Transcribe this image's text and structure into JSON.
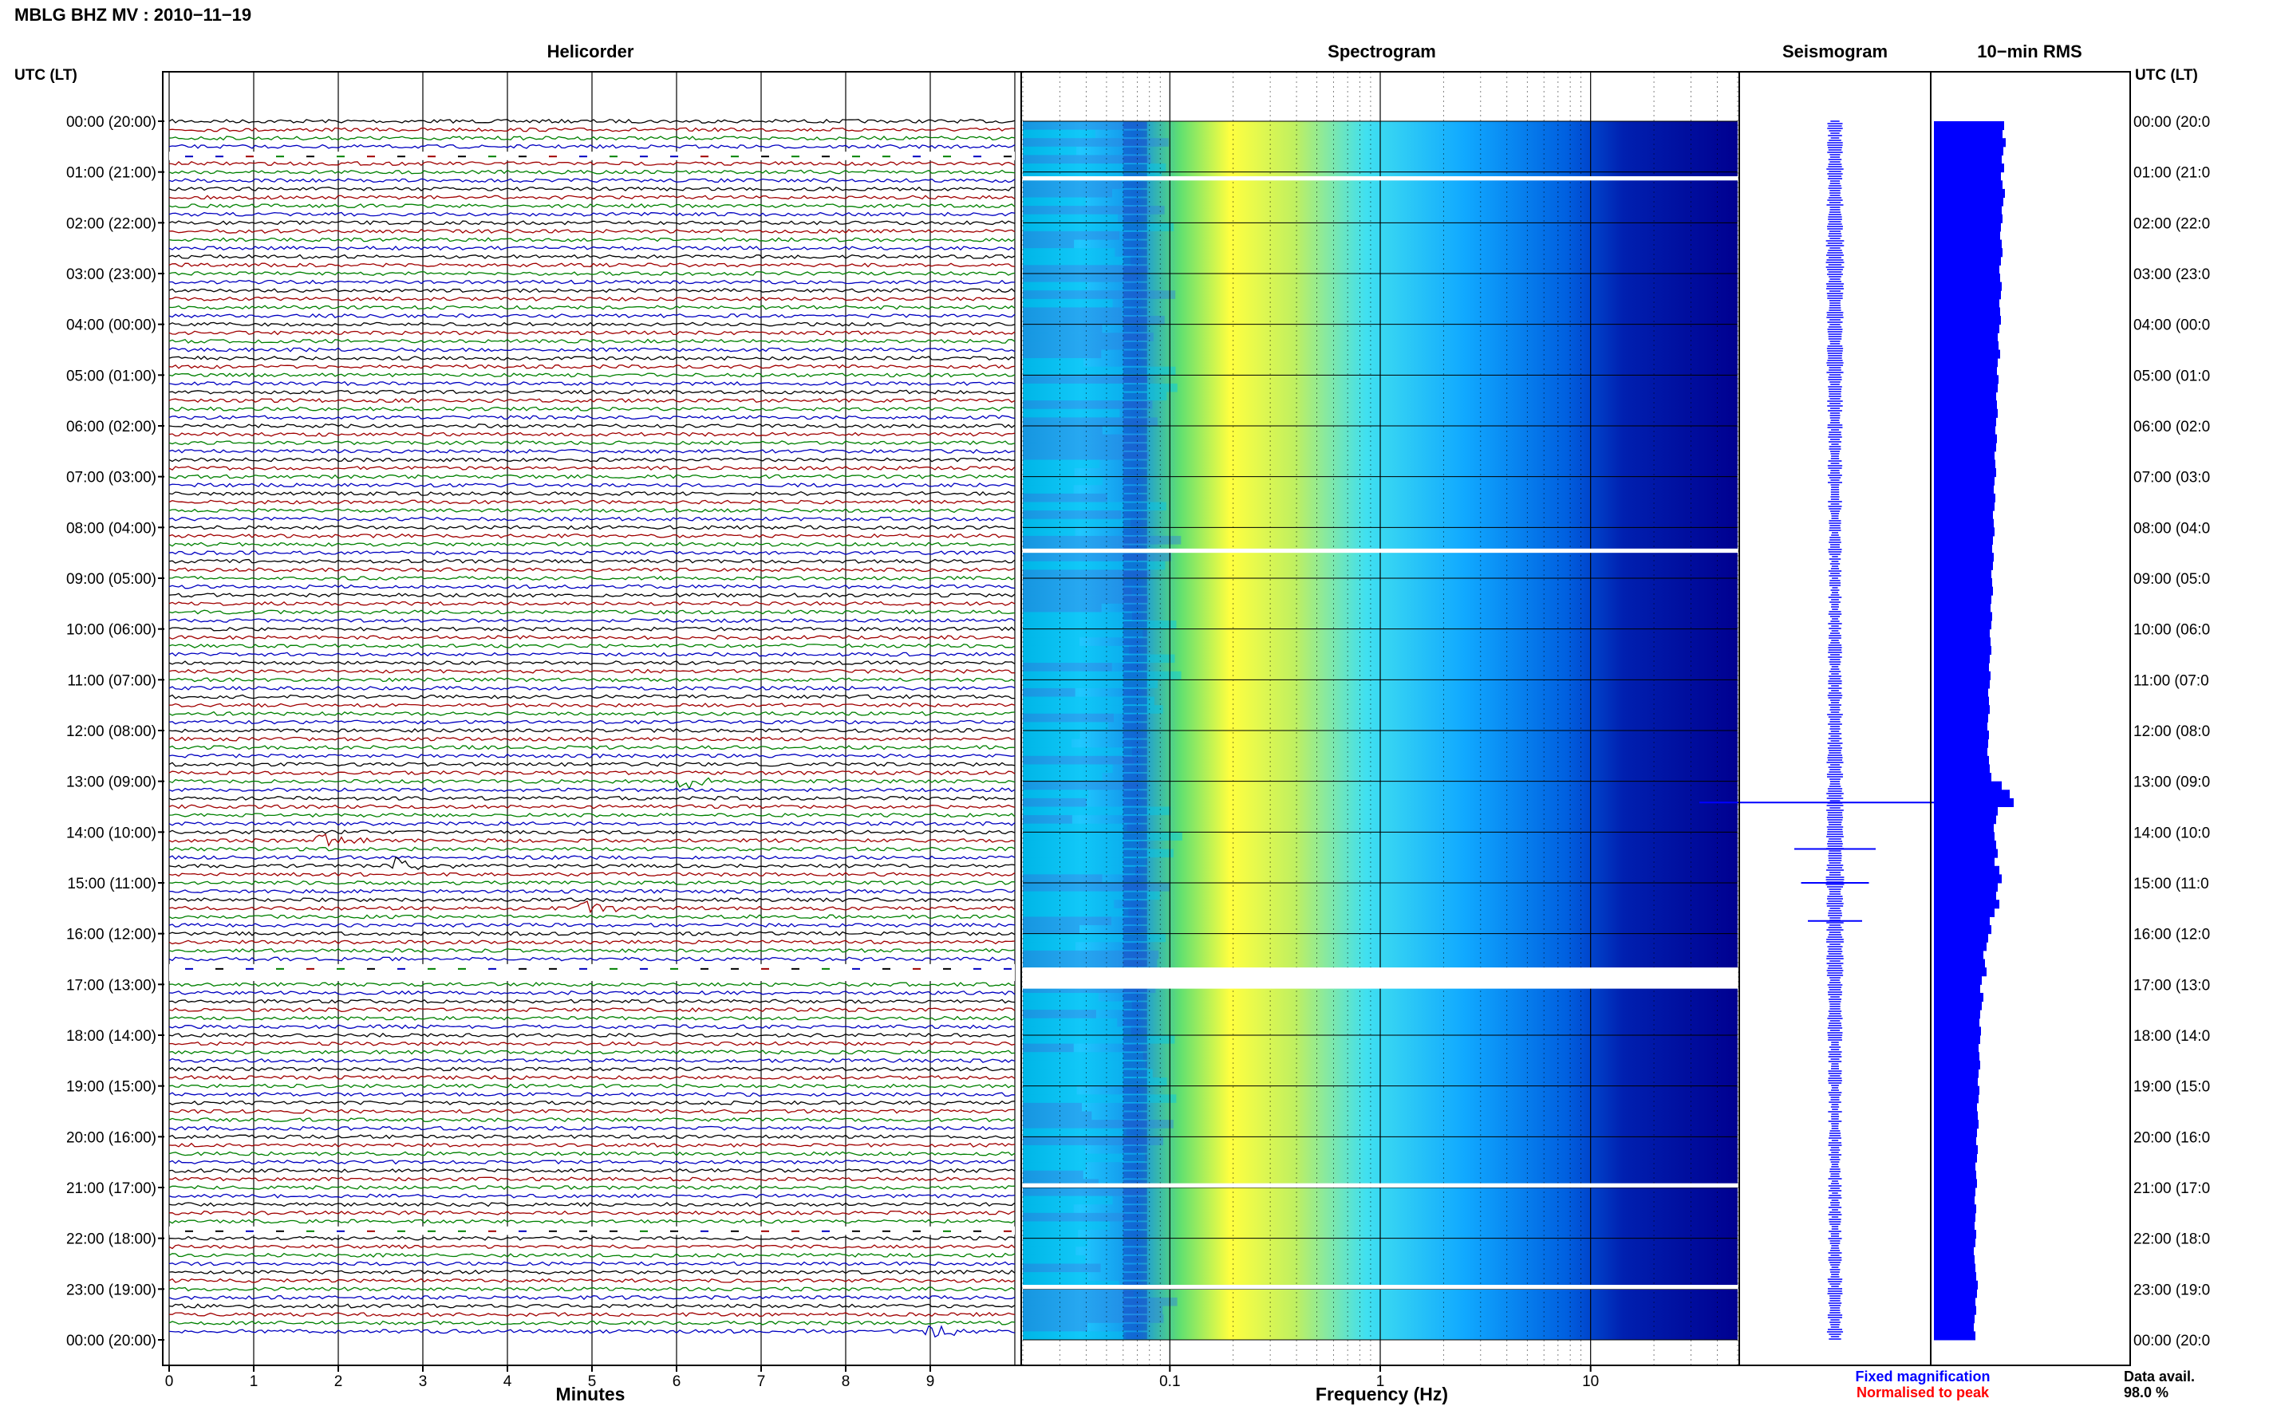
{
  "title": "MBLG BHZ MV : 2010−11−19",
  "panels": {
    "helicorder": "Helicorder",
    "spectrogram": "Spectrogram",
    "seismogram": "Seismogram",
    "rms": "10−min RMS"
  },
  "left_axis_label": "UTC (LT)",
  "right_axis_label": "UTC (LT)",
  "hour_labels_left": [
    "00:00 (20:00)",
    "01:00 (21:00)",
    "02:00 (22:00)",
    "03:00 (23:00)",
    "04:00 (00:00)",
    "05:00 (01:00)",
    "06:00 (02:00)",
    "07:00 (03:00)",
    "08:00 (04:00)",
    "09:00 (05:00)",
    "10:00 (06:00)",
    "11:00 (07:00)",
    "12:00 (08:00)",
    "13:00 (09:00)",
    "14:00 (10:00)",
    "15:00 (11:00)",
    "16:00 (12:00)",
    "17:00 (13:00)",
    "18:00 (14:00)",
    "19:00 (15:00)",
    "20:00 (16:00)",
    "21:00 (17:00)",
    "22:00 (18:00)",
    "23:00 (19:00)",
    "00:00 (20:00)"
  ],
  "hour_labels_right": [
    "00:00 (20:0",
    "01:00 (21:0",
    "02:00 (22:0",
    "03:00 (23:0",
    "04:00 (00:0",
    "05:00 (01:0",
    "06:00 (02:0",
    "07:00 (03:0",
    "08:00 (04:0",
    "09:00 (05:0",
    "10:00 (06:0",
    "11:00 (07:0",
    "12:00 (08:0",
    "13:00 (09:0",
    "14:00 (10:0",
    "15:00 (11:0",
    "16:00 (12:0",
    "17:00 (13:0",
    "18:00 (14:0",
    "19:00 (15:0",
    "20:00 (16:0",
    "21:00 (17:0",
    "22:00 (18:0",
    "23:00 (19:0",
    "00:00 (20:0"
  ],
  "minutes_axis": {
    "label": "Minutes",
    "ticks": [
      "0",
      "1",
      "2",
      "3",
      "4",
      "5",
      "6",
      "7",
      "8",
      "9"
    ]
  },
  "frequency_axis": {
    "label": "Frequency (Hz)",
    "ticks": [
      "0.1",
      "1",
      "10"
    ],
    "scale": "log",
    "range_hz": [
      0.02,
      50
    ]
  },
  "legend": {
    "fixed": "Fixed magnification",
    "normalised": "Normalised to peak"
  },
  "availability": {
    "label": "Data avail.",
    "value": "98.0 %"
  },
  "colors": {
    "trace_cycle": [
      "#000000",
      "#a00000",
      "#008000",
      "#0000c0"
    ],
    "fixed_magnification": "#0000ff",
    "normalised": "#ff0000",
    "seismogram": "#0000ff",
    "rms_bars": "#0000ff",
    "spectrogram_low": "#000080",
    "spectrogram_mid": "#00c0ff",
    "spectrogram_high": "#ffff00"
  },
  "chart_data": [
    {
      "type": "line",
      "panel": "helicorder",
      "rows_per_hour": 6,
      "minutes_per_row": 10,
      "xlabel": "Minutes",
      "events": [
        {
          "time_utc": "13:00",
          "minute": 6.1,
          "trace_color": "black"
        },
        {
          "time_utc": "14:10",
          "minute": 1.8,
          "trace_color": "blue"
        },
        {
          "time_utc": "14:40",
          "minute": 2.7,
          "trace_color": "blue"
        },
        {
          "time_utc": "15:30",
          "minute": 4.9,
          "trace_color": "blue"
        },
        {
          "time_utc": "23:50",
          "minute": 9.0,
          "trace_color": "green"
        }
      ],
      "gaps_utc": [
        "00:40-00:50",
        "16:40-17:00",
        "21:50-22:00"
      ]
    },
    {
      "type": "heatmap",
      "panel": "spectrogram",
      "xlabel": "Frequency (Hz)",
      "x_scale": "log",
      "xlim": [
        0.02,
        50
      ],
      "gaps_utc": [
        "01:05-01:10",
        "08:25-08:30",
        "16:40-17:05",
        "20:55-21:00",
        "22:55-23:00"
      ]
    },
    {
      "type": "line",
      "panel": "seismogram",
      "spikes_utc": [
        {
          "time": "13:25",
          "amplitude": 1.0
        },
        {
          "time": "14:20",
          "amplitude": 0.3
        },
        {
          "time": "15:00",
          "amplitude": 0.25
        },
        {
          "time": "15:45",
          "amplitude": 0.2
        }
      ]
    },
    {
      "type": "bar",
      "panel": "rms",
      "interval_minutes": 10,
      "values_relative": [
        0.88,
        0.86,
        0.9,
        0.87,
        0.85,
        0.88,
        0.84,
        0.86,
        0.89,
        0.87,
        0.85,
        0.86,
        0.84,
        0.83,
        0.85,
        0.86,
        0.84,
        0.82,
        0.83,
        0.85,
        0.84,
        0.82,
        0.83,
        0.84,
        0.82,
        0.8,
        0.81,
        0.83,
        0.8,
        0.79,
        0.81,
        0.8,
        0.78,
        0.79,
        0.8,
        0.78,
        0.77,
        0.79,
        0.78,
        0.76,
        0.77,
        0.78,
        0.76,
        0.75,
        0.77,
        0.76,
        0.74,
        0.75,
        0.76,
        0.74,
        0.73,
        0.75,
        0.74,
        0.72,
        0.73,
        0.74,
        0.72,
        0.71,
        0.73,
        0.72,
        0.7,
        0.71,
        0.72,
        0.7,
        0.69,
        0.71,
        0.7,
        0.68,
        0.69,
        0.7,
        0.68,
        0.67,
        0.69,
        0.68,
        0.67,
        0.69,
        0.7,
        0.72,
        0.85,
        0.95,
        1.0,
        0.8,
        0.78,
        0.75,
        0.76,
        0.78,
        0.8,
        0.76,
        0.82,
        0.85,
        0.8,
        0.78,
        0.82,
        0.76,
        0.7,
        0.72,
        0.68,
        0.66,
        0.62,
        0.64,
        0.66,
        0.6,
        0.58,
        0.62,
        0.6,
        0.58,
        0.57,
        0.59,
        0.58,
        0.56,
        0.57,
        0.58,
        0.56,
        0.55,
        0.57,
        0.56,
        0.54,
        0.55,
        0.56,
        0.54,
        0.53,
        0.55,
        0.54,
        0.52,
        0.53,
        0.54,
        0.52,
        0.51,
        0.53,
        0.52,
        0.51,
        0.53,
        0.52,
        0.5,
        0.51,
        0.52,
        0.53,
        0.55,
        0.54,
        0.52,
        0.53,
        0.51,
        0.5,
        0.52
      ]
    }
  ]
}
